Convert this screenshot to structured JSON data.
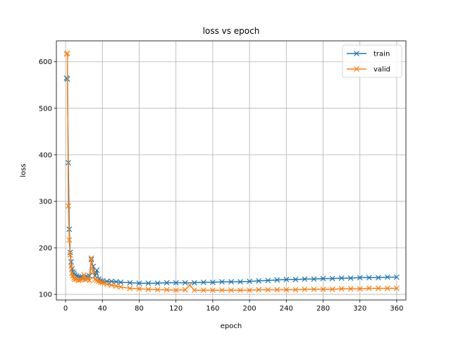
{
  "chart_data": {
    "type": "line",
    "title": "loss vs epoch",
    "xlabel": "epoch",
    "ylabel": "loss",
    "xlim": [
      -10,
      370
    ],
    "ylim": [
      88,
      645
    ],
    "xticks": [
      0,
      40,
      80,
      120,
      160,
      200,
      240,
      280,
      320,
      360
    ],
    "yticks": [
      100,
      200,
      300,
      400,
      500,
      600
    ],
    "grid": true,
    "legend_position": "top-right",
    "marker": "x",
    "series": [
      {
        "name": "train",
        "color": "#1f77b4",
        "points": [
          [
            1,
            565
          ],
          [
            2,
            563
          ],
          [
            3,
            383
          ],
          [
            4,
            240
          ],
          [
            5,
            190
          ],
          [
            6,
            170
          ],
          [
            7,
            155
          ],
          [
            8,
            148
          ],
          [
            9,
            145
          ],
          [
            10,
            142
          ],
          [
            12,
            140
          ],
          [
            14,
            138
          ],
          [
            16,
            137
          ],
          [
            18,
            136
          ],
          [
            20,
            136
          ],
          [
            22,
            138
          ],
          [
            24,
            137
          ],
          [
            26,
            140
          ],
          [
            28,
            175
          ],
          [
            30,
            160
          ],
          [
            32,
            140
          ],
          [
            34,
            152
          ],
          [
            36,
            133
          ],
          [
            38,
            130
          ],
          [
            40,
            129
          ],
          [
            45,
            128
          ],
          [
            50,
            128
          ],
          [
            55,
            127
          ],
          [
            60,
            126
          ],
          [
            70,
            125
          ],
          [
            80,
            124
          ],
          [
            90,
            124
          ],
          [
            100,
            124
          ],
          [
            110,
            125
          ],
          [
            120,
            125
          ],
          [
            130,
            125
          ],
          [
            140,
            125
          ],
          [
            150,
            126
          ],
          [
            160,
            126
          ],
          [
            170,
            127
          ],
          [
            180,
            127
          ],
          [
            190,
            127
          ],
          [
            200,
            128
          ],
          [
            210,
            129
          ],
          [
            220,
            130
          ],
          [
            230,
            131
          ],
          [
            240,
            132
          ],
          [
            250,
            132
          ],
          [
            260,
            133
          ],
          [
            270,
            133
          ],
          [
            280,
            134
          ],
          [
            290,
            134
          ],
          [
            300,
            135
          ],
          [
            310,
            135
          ],
          [
            320,
            136
          ],
          [
            330,
            136
          ],
          [
            340,
            136
          ],
          [
            350,
            137
          ],
          [
            360,
            137
          ]
        ]
      },
      {
        "name": "valid",
        "color": "#ff7f0e",
        "points": [
          [
            1,
            617
          ],
          [
            2,
            618
          ],
          [
            3,
            290
          ],
          [
            4,
            217
          ],
          [
            5,
            185
          ],
          [
            6,
            160
          ],
          [
            7,
            145
          ],
          [
            8,
            140
          ],
          [
            9,
            135
          ],
          [
            10,
            132
          ],
          [
            12,
            133
          ],
          [
            14,
            130
          ],
          [
            16,
            131
          ],
          [
            18,
            132
          ],
          [
            20,
            142
          ],
          [
            22,
            132
          ],
          [
            24,
            133
          ],
          [
            26,
            130
          ],
          [
            28,
            178
          ],
          [
            30,
            150
          ],
          [
            32,
            132
          ],
          [
            34,
            130
          ],
          [
            36,
            128
          ],
          [
            38,
            126
          ],
          [
            40,
            125
          ],
          [
            45,
            122
          ],
          [
            50,
            120
          ],
          [
            55,
            118
          ],
          [
            60,
            116
          ],
          [
            70,
            113
          ],
          [
            80,
            112
          ],
          [
            90,
            111
          ],
          [
            100,
            110
          ],
          [
            110,
            110
          ],
          [
            120,
            109
          ],
          [
            130,
            110
          ],
          [
            135,
            120
          ],
          [
            140,
            109
          ],
          [
            150,
            109
          ],
          [
            160,
            109
          ],
          [
            170,
            109
          ],
          [
            180,
            109
          ],
          [
            190,
            109
          ],
          [
            200,
            109
          ],
          [
            210,
            110
          ],
          [
            220,
            110
          ],
          [
            230,
            110
          ],
          [
            240,
            110
          ],
          [
            250,
            110
          ],
          [
            260,
            111
          ],
          [
            270,
            111
          ],
          [
            280,
            111
          ],
          [
            290,
            111
          ],
          [
            300,
            112
          ],
          [
            310,
            112
          ],
          [
            320,
            112
          ],
          [
            330,
            113
          ],
          [
            340,
            113
          ],
          [
            350,
            113
          ],
          [
            360,
            113
          ]
        ]
      }
    ]
  }
}
